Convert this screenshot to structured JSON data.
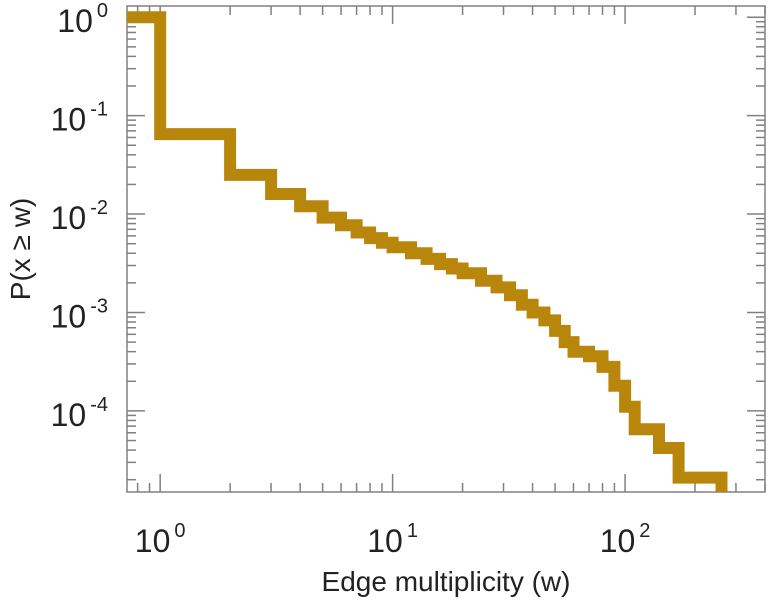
{
  "chart_data": {
    "type": "line",
    "step": true,
    "xscale": "log",
    "yscale": "log",
    "xlabel": "Edge multiplicity (w)",
    "ylabel": "P(x ≥ w)",
    "xlim": [
      0.72,
      400
    ],
    "ylim": [
      1.5e-05,
      1.3
    ],
    "grid": false,
    "x_ticks": [
      {
        "value": 1,
        "base": "10",
        "exp": "0"
      },
      {
        "value": 10,
        "base": "10",
        "exp": "1"
      },
      {
        "value": 100,
        "base": "10",
        "exp": "2"
      }
    ],
    "y_ticks": [
      {
        "value": 1,
        "base": "10",
        "exp": "0"
      },
      {
        "value": 0.1,
        "base": "10",
        "exp": "-1"
      },
      {
        "value": 0.01,
        "base": "10",
        "exp": "-2"
      },
      {
        "value": 0.001,
        "base": "10",
        "exp": "-3"
      },
      {
        "value": 0.0001,
        "base": "10",
        "exp": "-4"
      }
    ],
    "series": [
      {
        "color": "#b8860b",
        "x": [
          0.72,
          1,
          2,
          3,
          4,
          5,
          6,
          7,
          8,
          9,
          10,
          12,
          14,
          16,
          18,
          20,
          24,
          28,
          32,
          36,
          40,
          45,
          50,
          55,
          60,
          70,
          80,
          90,
          100,
          110,
          140,
          170,
          260
        ],
        "y": [
          1.0,
          0.065,
          0.025,
          0.016,
          0.012,
          0.0092,
          0.0077,
          0.0065,
          0.0057,
          0.0051,
          0.0046,
          0.004,
          0.0035,
          0.0031,
          0.0028,
          0.0025,
          0.0021,
          0.0018,
          0.0015,
          0.0012,
          0.001,
          0.00083,
          0.00065,
          0.0005,
          0.0004,
          0.00036,
          0.00028,
          0.00018,
          0.00011,
          6.5e-05,
          4.2e-05,
          2.1e-05,
          1.5e-05
        ]
      }
    ]
  }
}
